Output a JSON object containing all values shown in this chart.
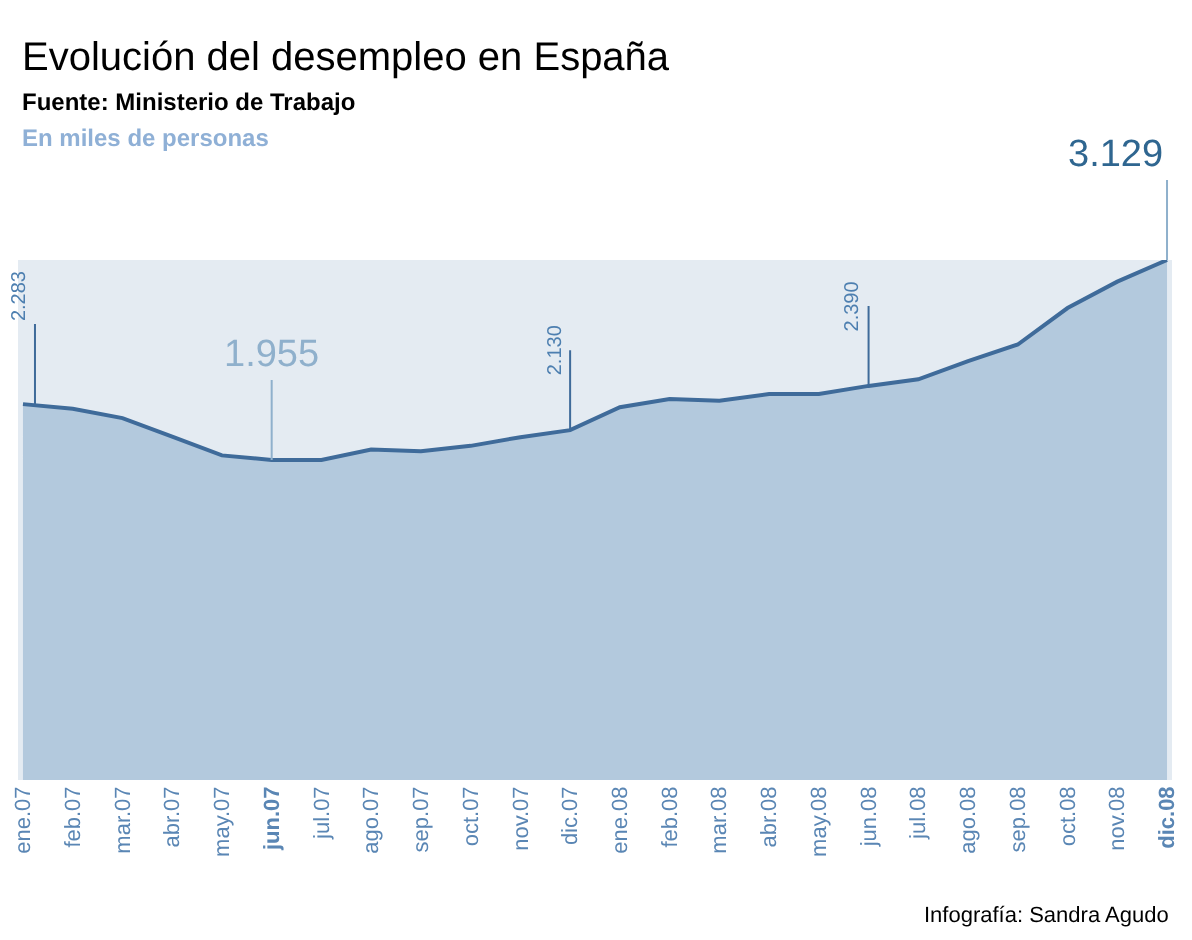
{
  "chart_data": {
    "type": "area",
    "title": "Evolución del desempleo en España",
    "subtitle": "Fuente: Ministerio de Trabajo",
    "annotations": [
      "En miles de personas",
      "Infografía: Sandra Agudo"
    ],
    "categories": [
      "ene.07",
      "feb.07",
      "mar.07",
      "abr.07",
      "may.07",
      "jun.07",
      "jul.07",
      "ago.07",
      "sep.07",
      "oct.07",
      "nov.07",
      "dic.07",
      "ene.08",
      "feb.08",
      "mar.08",
      "abr.08",
      "may.08",
      "jun.08",
      "jul.08",
      "ago.08",
      "sep.08",
      "oct.08",
      "nov.08",
      "dic.08"
    ],
    "series": [
      {
        "color": "#3f6b9a",
        "values": [
          2283,
          2256,
          2201,
          2092,
          1982,
          1955,
          1955,
          2017,
          2006,
          2038,
          2089,
          2130,
          2265,
          2313,
          2303,
          2342,
          2342,
          2390,
          2429,
          2536,
          2633,
          2847,
          3002,
          3129
        ],
        "value_labels": [
          "2.283",
          null,
          null,
          null,
          null,
          "1.955",
          null,
          null,
          null,
          null,
          null,
          "2.130",
          null,
          null,
          null,
          null,
          null,
          "2.390",
          null,
          null,
          null,
          null,
          null,
          "3.129"
        ]
      }
    ],
    "line_style": "solid"
  }
}
